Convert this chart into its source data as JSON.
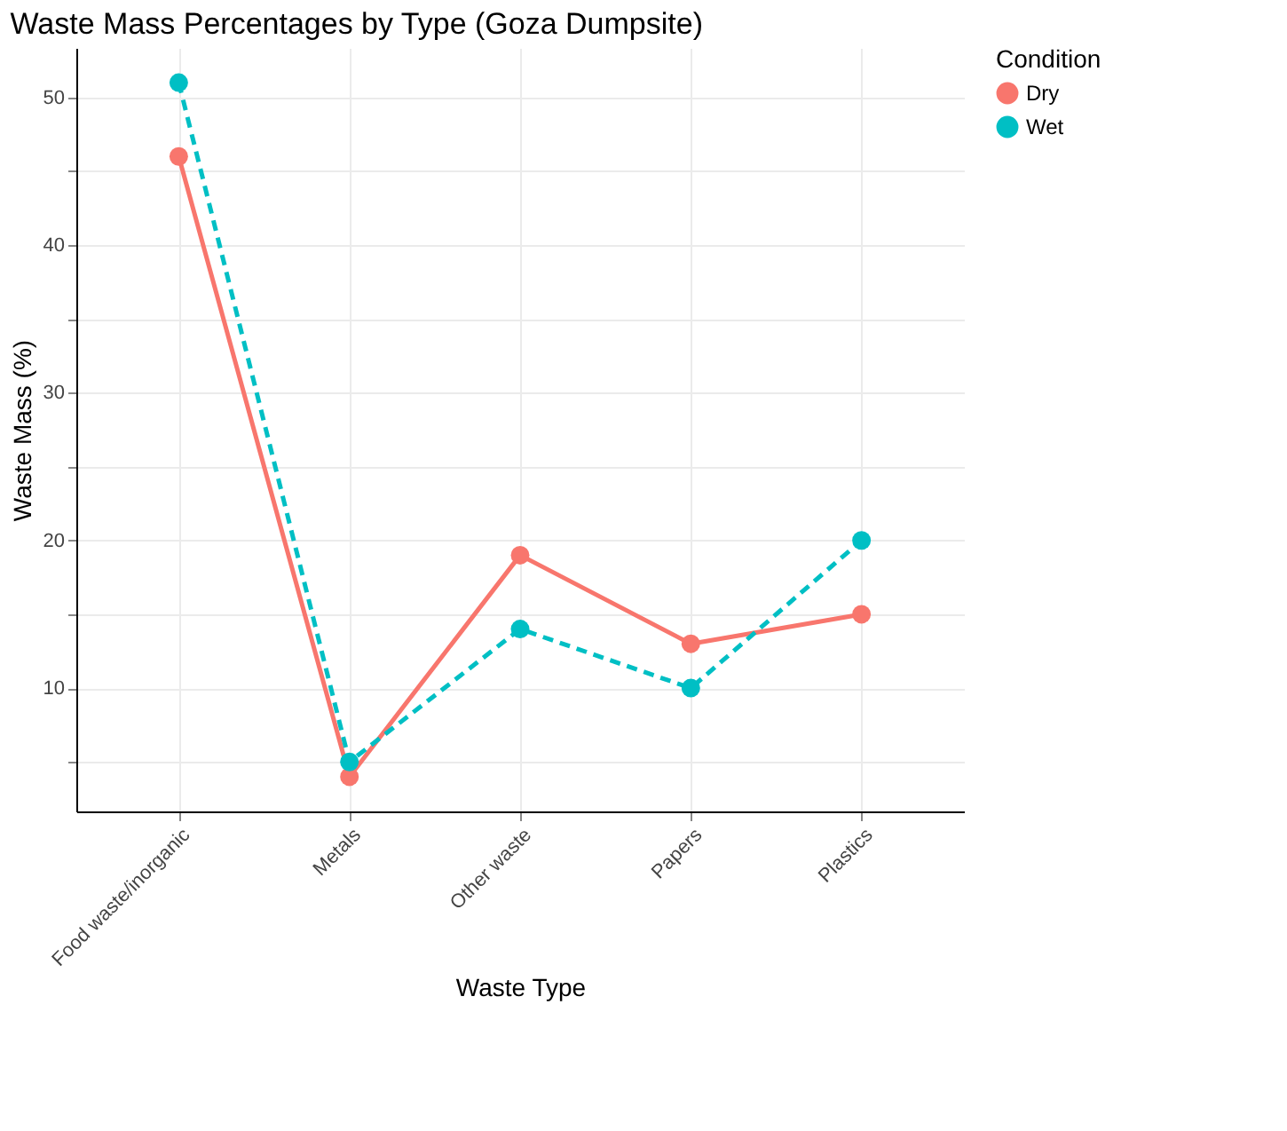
{
  "chart_data": {
    "type": "line",
    "title": "Waste Mass Percentages by Type (Goza Dumpsite)",
    "xlabel": "Waste Type",
    "ylabel": "Waste Mass (%)",
    "legend_title": "Condition",
    "categories": [
      "Food waste/inorganic",
      "Metals",
      "Other waste",
      "Papers",
      "Plastics"
    ],
    "series": [
      {
        "name": "Dry",
        "color": "#f8766d",
        "values": [
          46,
          4,
          19,
          13,
          15
        ],
        "line_style": "solid"
      },
      {
        "name": "Wet",
        "color": "#00bfc4",
        "values": [
          51,
          5,
          14,
          10,
          20
        ],
        "line_style": "dashed"
      }
    ],
    "ylim": [
      1.65,
      53.35
    ],
    "yticks": [
      {
        "value": 5,
        "label": null
      },
      10,
      {
        "value": 15,
        "label": null
      },
      20,
      {
        "value": 25,
        "label": null
      },
      30,
      {
        "value": 35,
        "label": null
      },
      40,
      {
        "value": 45,
        "label": null
      },
      50
    ],
    "grid": true,
    "legend": "right",
    "marker": "circle"
  }
}
